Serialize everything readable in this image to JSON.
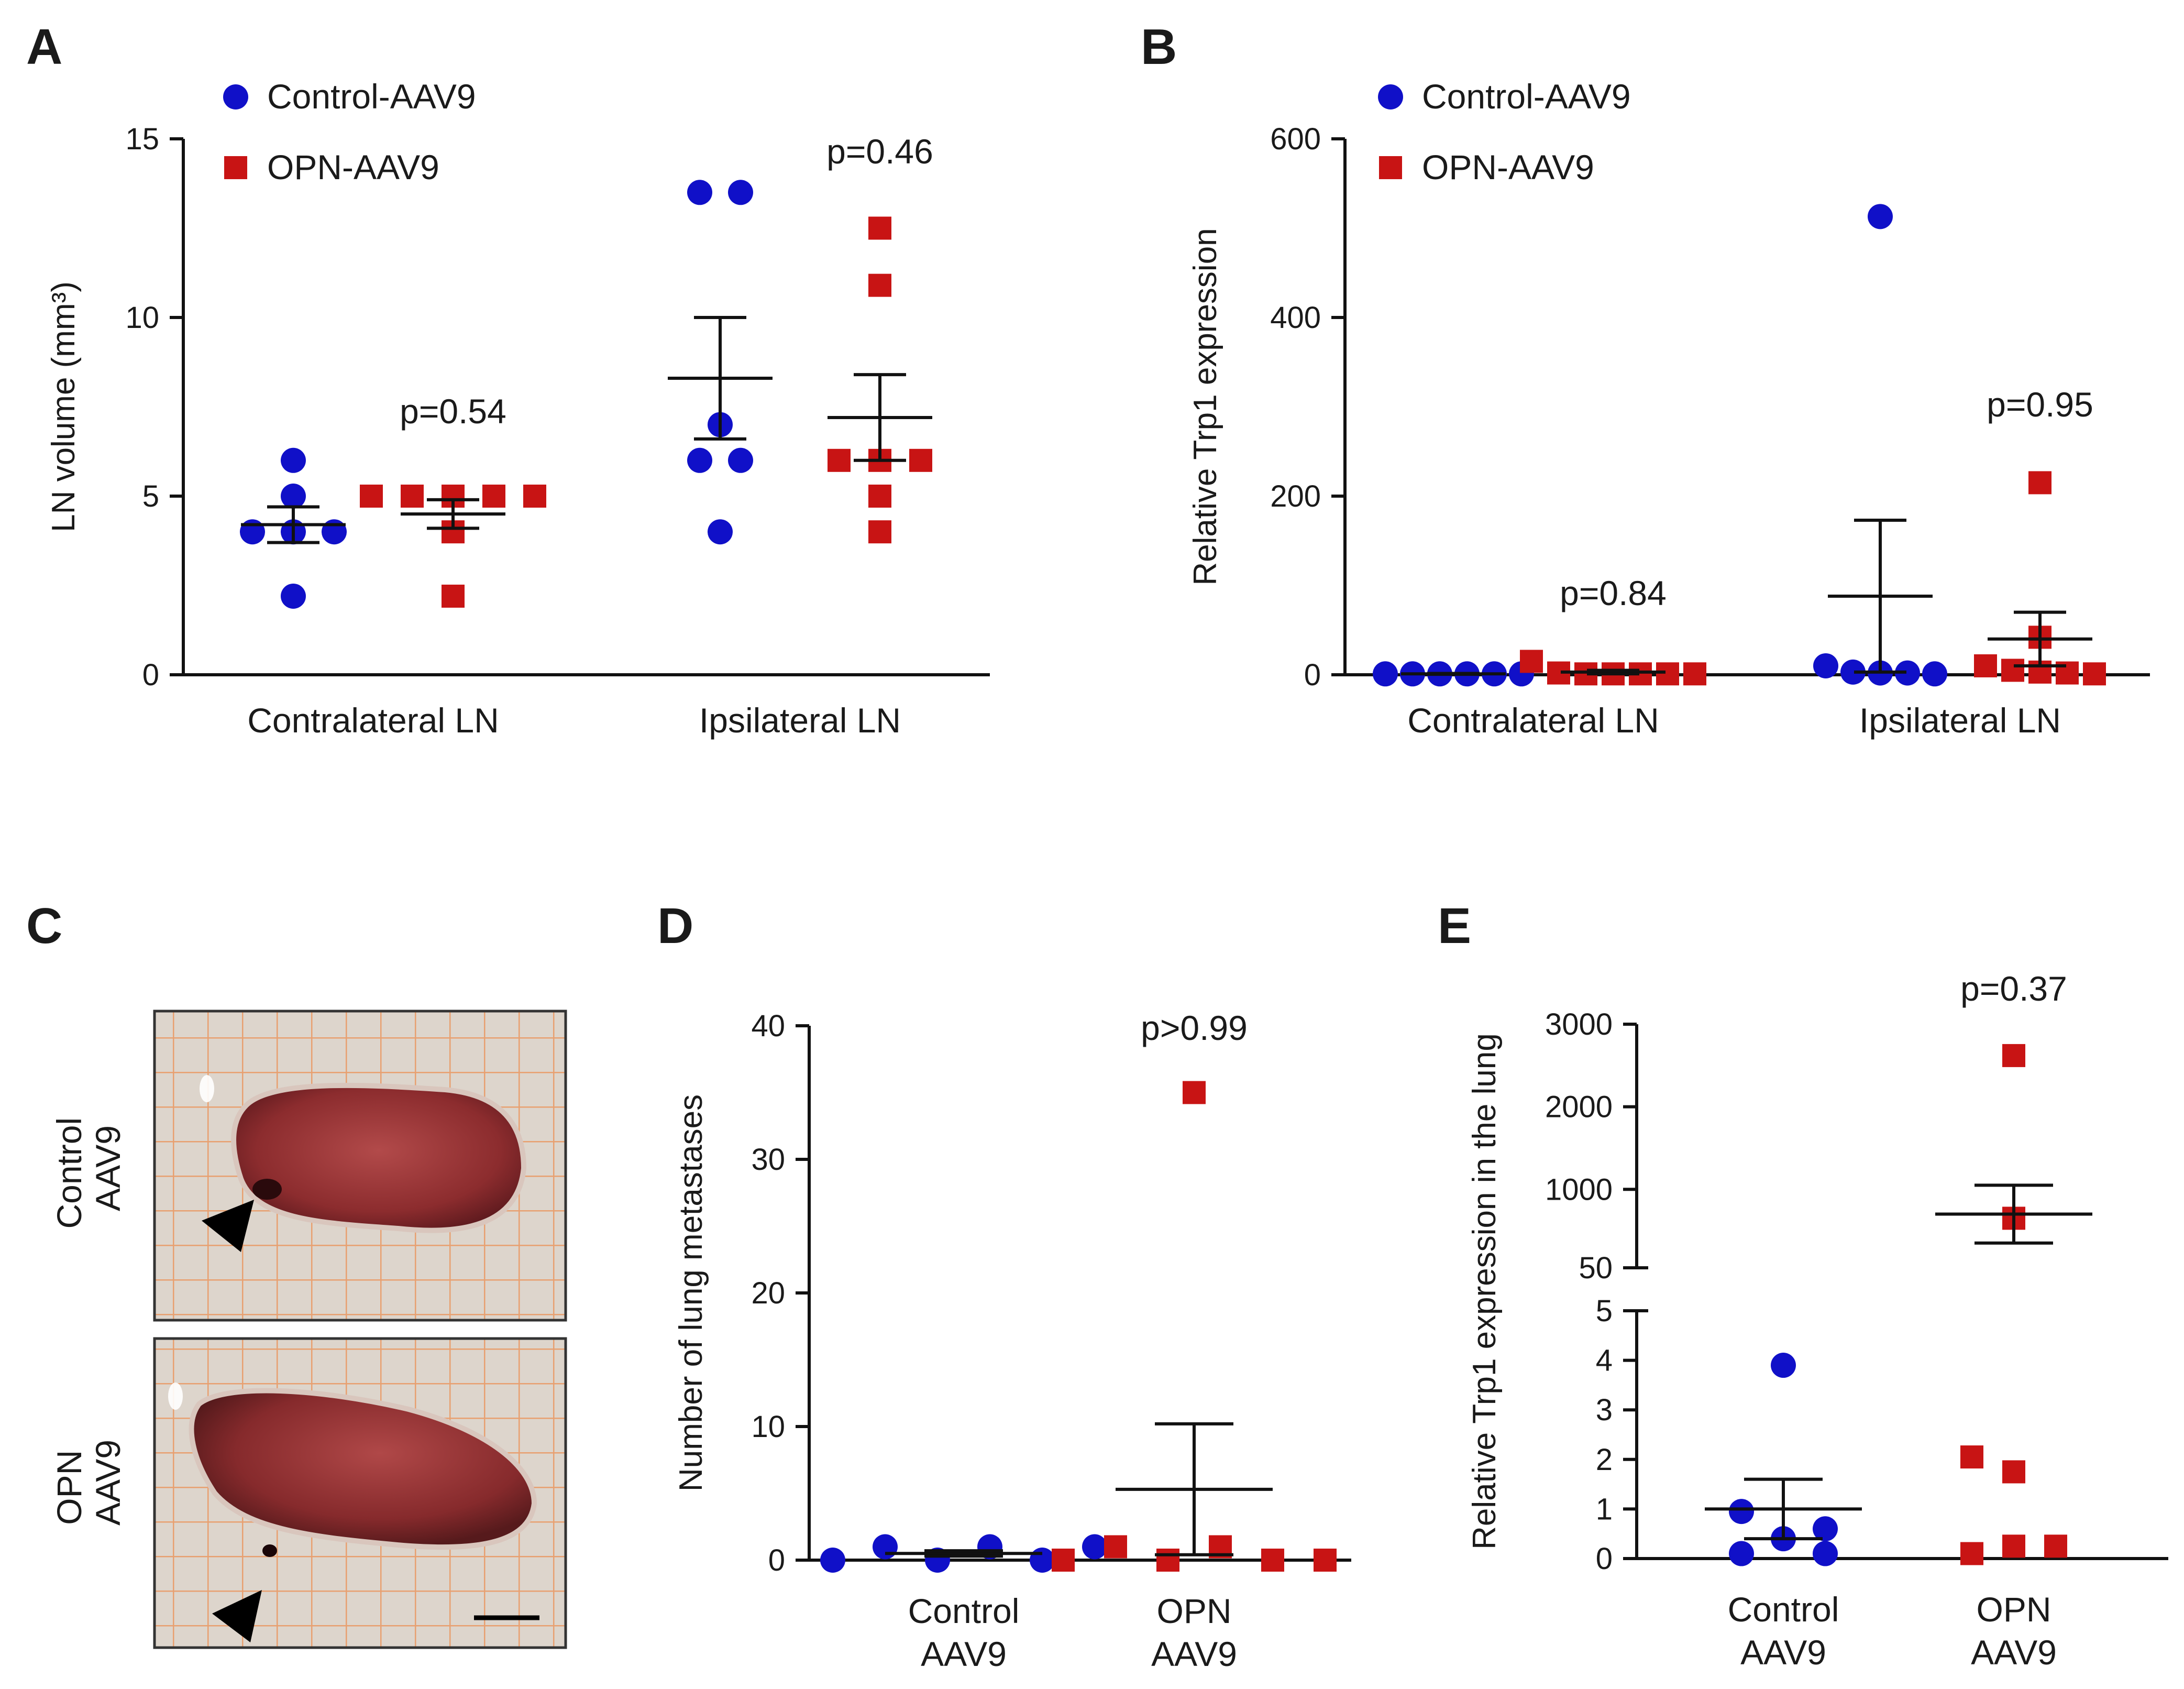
{
  "colors": {
    "control": "#1010c8",
    "opn": "#c81414",
    "axis": "#111111"
  },
  "chart_data": [
    {
      "panel": "A",
      "type": "scatter",
      "ylabel": "LN volume (mm³)",
      "ylim": [
        0,
        15
      ],
      "yticks": [
        0,
        5,
        10,
        15
      ],
      "categories": [
        "Contralateral LN",
        "Ipsilateral LN"
      ],
      "legend": [
        "Control-AAV9",
        "OPN-AAV9"
      ],
      "pvalues": [
        "p=0.54",
        "p=0.46"
      ],
      "series": [
        {
          "name": "Control-AAV9",
          "marker": "circle",
          "groups": [
            [
              6.0,
              5.0,
              4.0,
              4.0,
              4.0,
              2.2
            ],
            [
              13.5,
              13.5,
              7.0,
              6.0,
              6.0,
              4.0
            ]
          ],
          "mean": [
            4.2,
            8.3
          ],
          "sem": [
            0.5,
            1.7
          ]
        },
        {
          "name": "OPN-AAV9",
          "marker": "square",
          "groups": [
            [
              5.0,
              5.0,
              5.0,
              5.0,
              5.0,
              4.0,
              2.2
            ],
            [
              12.5,
              10.9,
              6.0,
              6.0,
              6.0,
              5.0,
              4.0
            ]
          ],
          "mean": [
            4.5,
            7.2
          ],
          "sem": [
            0.4,
            1.2
          ]
        }
      ]
    },
    {
      "panel": "B",
      "type": "scatter",
      "ylabel": "Relative Trp1 expression",
      "ylim": [
        0,
        600
      ],
      "yticks": [
        0,
        200,
        400,
        600
      ],
      "categories": [
        "Contralateral LN",
        "Ipsilateral LN"
      ],
      "legend": [
        "Control-AAV9",
        "OPN-AAV9"
      ],
      "pvalues": [
        "p=0.84",
        "p=0.95"
      ],
      "series": [
        {
          "name": "Control-AAV9",
          "marker": "circle",
          "groups": [
            [
              1,
              1,
              1,
              1,
              1,
              1
            ],
            [
              513,
              10,
              3,
              2,
              2,
              1
            ]
          ],
          "mean": [
            1,
            88
          ],
          "sem": [
            0.5,
            85
          ]
        },
        {
          "name": "OPN-AAV9",
          "marker": "square",
          "groups": [
            [
              15,
              2,
              1,
              1,
              1,
              1,
              1
            ],
            [
              215,
              42,
              10,
              5,
              3,
              2,
              1
            ]
          ],
          "mean": [
            3,
            40
          ],
          "sem": [
            2,
            30
          ]
        }
      ]
    },
    {
      "panel": "D",
      "type": "scatter",
      "ylabel": "Number of lung metastases",
      "ylim": [
        0,
        40
      ],
      "yticks": [
        0,
        10,
        20,
        30,
        40
      ],
      "categories": [
        [
          "Control",
          "AAV9"
        ],
        [
          "OPN",
          "AAV9"
        ]
      ],
      "pvalues": [
        "p>0.99"
      ],
      "series": [
        {
          "name": "Control-AAV9",
          "marker": "circle",
          "groups": [
            [
              0,
              1,
              0,
              1,
              0,
              1
            ]
          ],
          "mean": [
            0.5
          ],
          "sem": [
            0.2
          ]
        },
        {
          "name": "OPN-AAV9",
          "marker": "square",
          "groups": [
            [
              35,
              0,
              1,
              0,
              1,
              0,
              0
            ]
          ],
          "mean": [
            5.3
          ],
          "sem": [
            4.9
          ]
        }
      ]
    },
    {
      "panel": "E",
      "type": "scatter",
      "ylabel": "Relative Trp1 expression in the lung",
      "axis_break": {
        "lower": [
          0,
          5
        ],
        "upper": [
          50,
          3000
        ]
      },
      "yticks_lower": [
        0,
        1,
        2,
        3,
        4,
        5
      ],
      "yticks_upper": [
        50,
        1000,
        2000,
        3000
      ],
      "categories": [
        [
          "Control",
          "AAV9"
        ],
        [
          "OPN",
          "AAV9"
        ]
      ],
      "pvalues": [
        "p=0.37"
      ],
      "series": [
        {
          "name": "Control-AAV9",
          "marker": "circle",
          "groups": [
            [
              3.9,
              0.95,
              0.1,
              0.4,
              0.6,
              0.1
            ]
          ],
          "mean": [
            1.0
          ],
          "sem": [
            0.6
          ]
        },
        {
          "name": "OPN-AAV9",
          "marker": "square",
          "groups": [
            [
              2620,
              650,
              2.05,
              1.75,
              0.1,
              0.25,
              0.25
            ]
          ],
          "mean": [
            700
          ],
          "sem": [
            350
          ]
        }
      ]
    }
  ],
  "panel_c": {
    "letter": "C",
    "top_label": [
      "Control",
      "AAV9"
    ],
    "bottom_label": [
      "OPN",
      "AAV9"
    ]
  }
}
